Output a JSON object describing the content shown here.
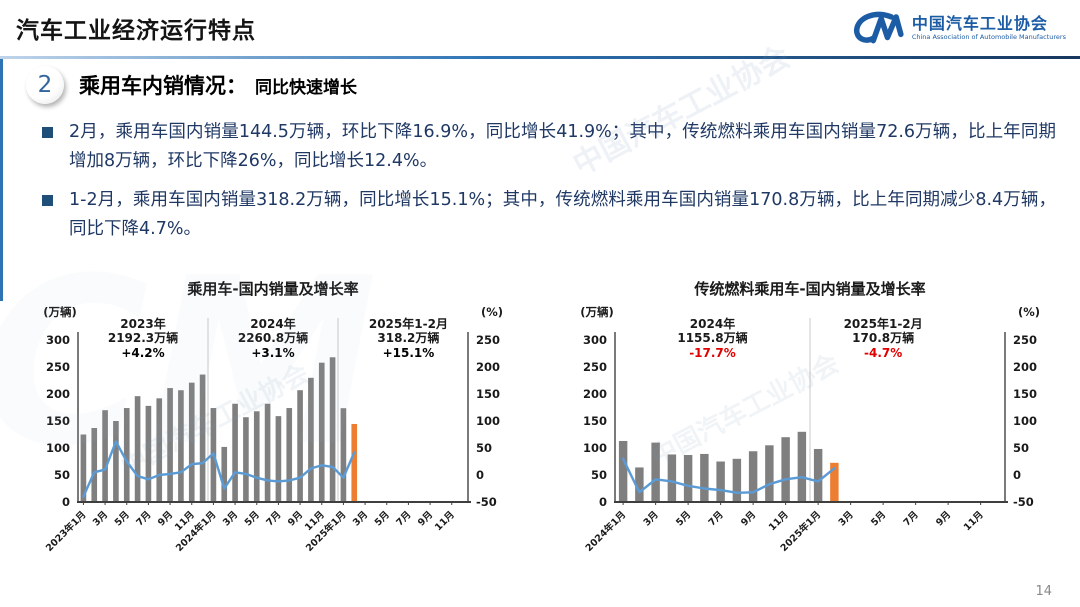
{
  "header": {
    "title": "汽车工业经济运行特点",
    "logo": {
      "mark": "CM",
      "org_cn": "中国汽车工业协会",
      "org_en": "China Association of Automobile Manufacturers"
    }
  },
  "section": {
    "number": "2",
    "title": "乘用车内销情况：",
    "subtitle": "同比快速增长"
  },
  "bullets": [
    "2月，乘用车国内销量144.5万辆，环比下降16.9%，同比增长41.9%；其中，传统燃料乘用车国内销量72.6万辆，比上年同期增加8万辆，环比下降26%，同比增长12.4%。",
    "1-2月，乘用车国内销量318.2万辆，同比增长15.1%；其中，传统燃料乘用车国内销量170.8万辆，比上年同期减少8.4万辆，同比下降4.7%。"
  ],
  "watermark": {
    "text": "中国汽车工业协会"
  },
  "page_number": "14",
  "chart_data": [
    {
      "type": "bar+line",
      "title": "乘用车-国内销量及增长率",
      "left_axis": {
        "label": "(万辆)",
        "min": 0,
        "max": 300,
        "step": 50
      },
      "right_axis": {
        "label": "(%)",
        "min": -50,
        "max": 250,
        "step": 50
      },
      "total_slots": 36,
      "tick_every": 2,
      "x_tick_labels": [
        "2023年1月",
        "3月",
        "5月",
        "7月",
        "9月",
        "11月",
        "2024年1月",
        "3月",
        "5月",
        "7月",
        "9月",
        "11月",
        "2025年1月",
        "3月",
        "5月",
        "7月",
        "9月",
        "11月"
      ],
      "categories": [
        "2023年1月",
        "2023年2月",
        "2023年3月",
        "2023年4月",
        "2023年5月",
        "2023年6月",
        "2023年7月",
        "2023年8月",
        "2023年9月",
        "2023年10月",
        "2023年11月",
        "2023年12月",
        "2024年1月",
        "2024年2月",
        "2024年3月",
        "2024年4月",
        "2024年5月",
        "2024年6月",
        "2024年7月",
        "2024年8月",
        "2024年9月",
        "2024年10月",
        "2024年11月",
        "2024年12月",
        "2025年1月",
        "2025年2月"
      ],
      "bars": {
        "name": "国内销量(万辆)",
        "color": "#7f7f7f",
        "highlight_last": true,
        "highlight_color": "#ed7d31",
        "values": [
          125,
          137,
          170,
          150,
          174,
          196,
          178,
          192,
          211,
          207,
          221,
          236,
          174,
          102,
          182,
          157,
          168,
          182,
          159,
          174,
          207,
          230,
          258,
          268,
          173.7,
          144.5
        ]
      },
      "line": {
        "name": "同比增长率(%)",
        "color": "#5b9bd5",
        "values": [
          -40,
          5,
          10,
          62,
          25,
          -2,
          -8,
          0,
          2,
          5,
          20,
          22,
          40,
          -25,
          5,
          2,
          -5,
          -10,
          -12,
          -10,
          -5,
          12,
          18,
          15,
          -5,
          41.9
        ]
      },
      "separators": [
        12,
        24
      ],
      "annotations": [
        {
          "label": "2023年",
          "total": "2192.3万辆",
          "pct": "+4.2%",
          "pct_color": "#000000",
          "slot_center": 6
        },
        {
          "label": "2024年",
          "total": "2260.8万辆",
          "pct": "+3.1%",
          "pct_color": "#000000",
          "slot_center": 18
        },
        {
          "label": "2025年1-2月",
          "total": "318.2万辆",
          "pct": "+15.1%",
          "pct_color": "#000000",
          "slot_center": 30.5
        }
      ]
    },
    {
      "type": "bar+line",
      "title": "传统燃料乘用车-国内销量及增长率",
      "left_axis": {
        "label": "(万辆)",
        "min": 0,
        "max": 300,
        "step": 50
      },
      "right_axis": {
        "label": "(%)",
        "min": -50,
        "max": 250,
        "step": 50
      },
      "total_slots": 24,
      "tick_every": 2,
      "x_tick_labels": [
        "2024年1月",
        "3月",
        "5月",
        "7月",
        "9月",
        "11月",
        "2025年1月",
        "3月",
        "5月",
        "7月",
        "9月",
        "11月"
      ],
      "categories": [
        "2024年1月",
        "2024年2月",
        "2024年3月",
        "2024年4月",
        "2024年5月",
        "2024年6月",
        "2024年7月",
        "2024年8月",
        "2024年9月",
        "2024年10月",
        "2024年11月",
        "2024年12月",
        "2025年1月",
        "2025年2月"
      ],
      "bars": {
        "name": "国内销量(万辆)",
        "color": "#7f7f7f",
        "highlight_last": true,
        "highlight_color": "#ed7d31",
        "values": [
          113,
          64,
          110,
          88,
          87,
          89,
          75,
          80,
          94,
          105,
          120,
          130,
          98.2,
          72.6
        ]
      },
      "line": {
        "name": "同比增长率(%)",
        "color": "#5b9bd5",
        "values": [
          30,
          -32,
          -8,
          -12,
          -20,
          -25,
          -28,
          -33,
          -32,
          -17,
          -8,
          -4,
          -12,
          12.4
        ]
      },
      "separators": [
        12
      ],
      "annotations": [
        {
          "label": "2024年",
          "total": "1155.8万辆",
          "pct": "-17.7%",
          "pct_color": "#e00000",
          "slot_center": 6
        },
        {
          "label": "2025年1-2月",
          "total": "170.8万辆",
          "pct": "-4.7%",
          "pct_color": "#e00000",
          "slot_center": 16.5
        }
      ]
    }
  ]
}
